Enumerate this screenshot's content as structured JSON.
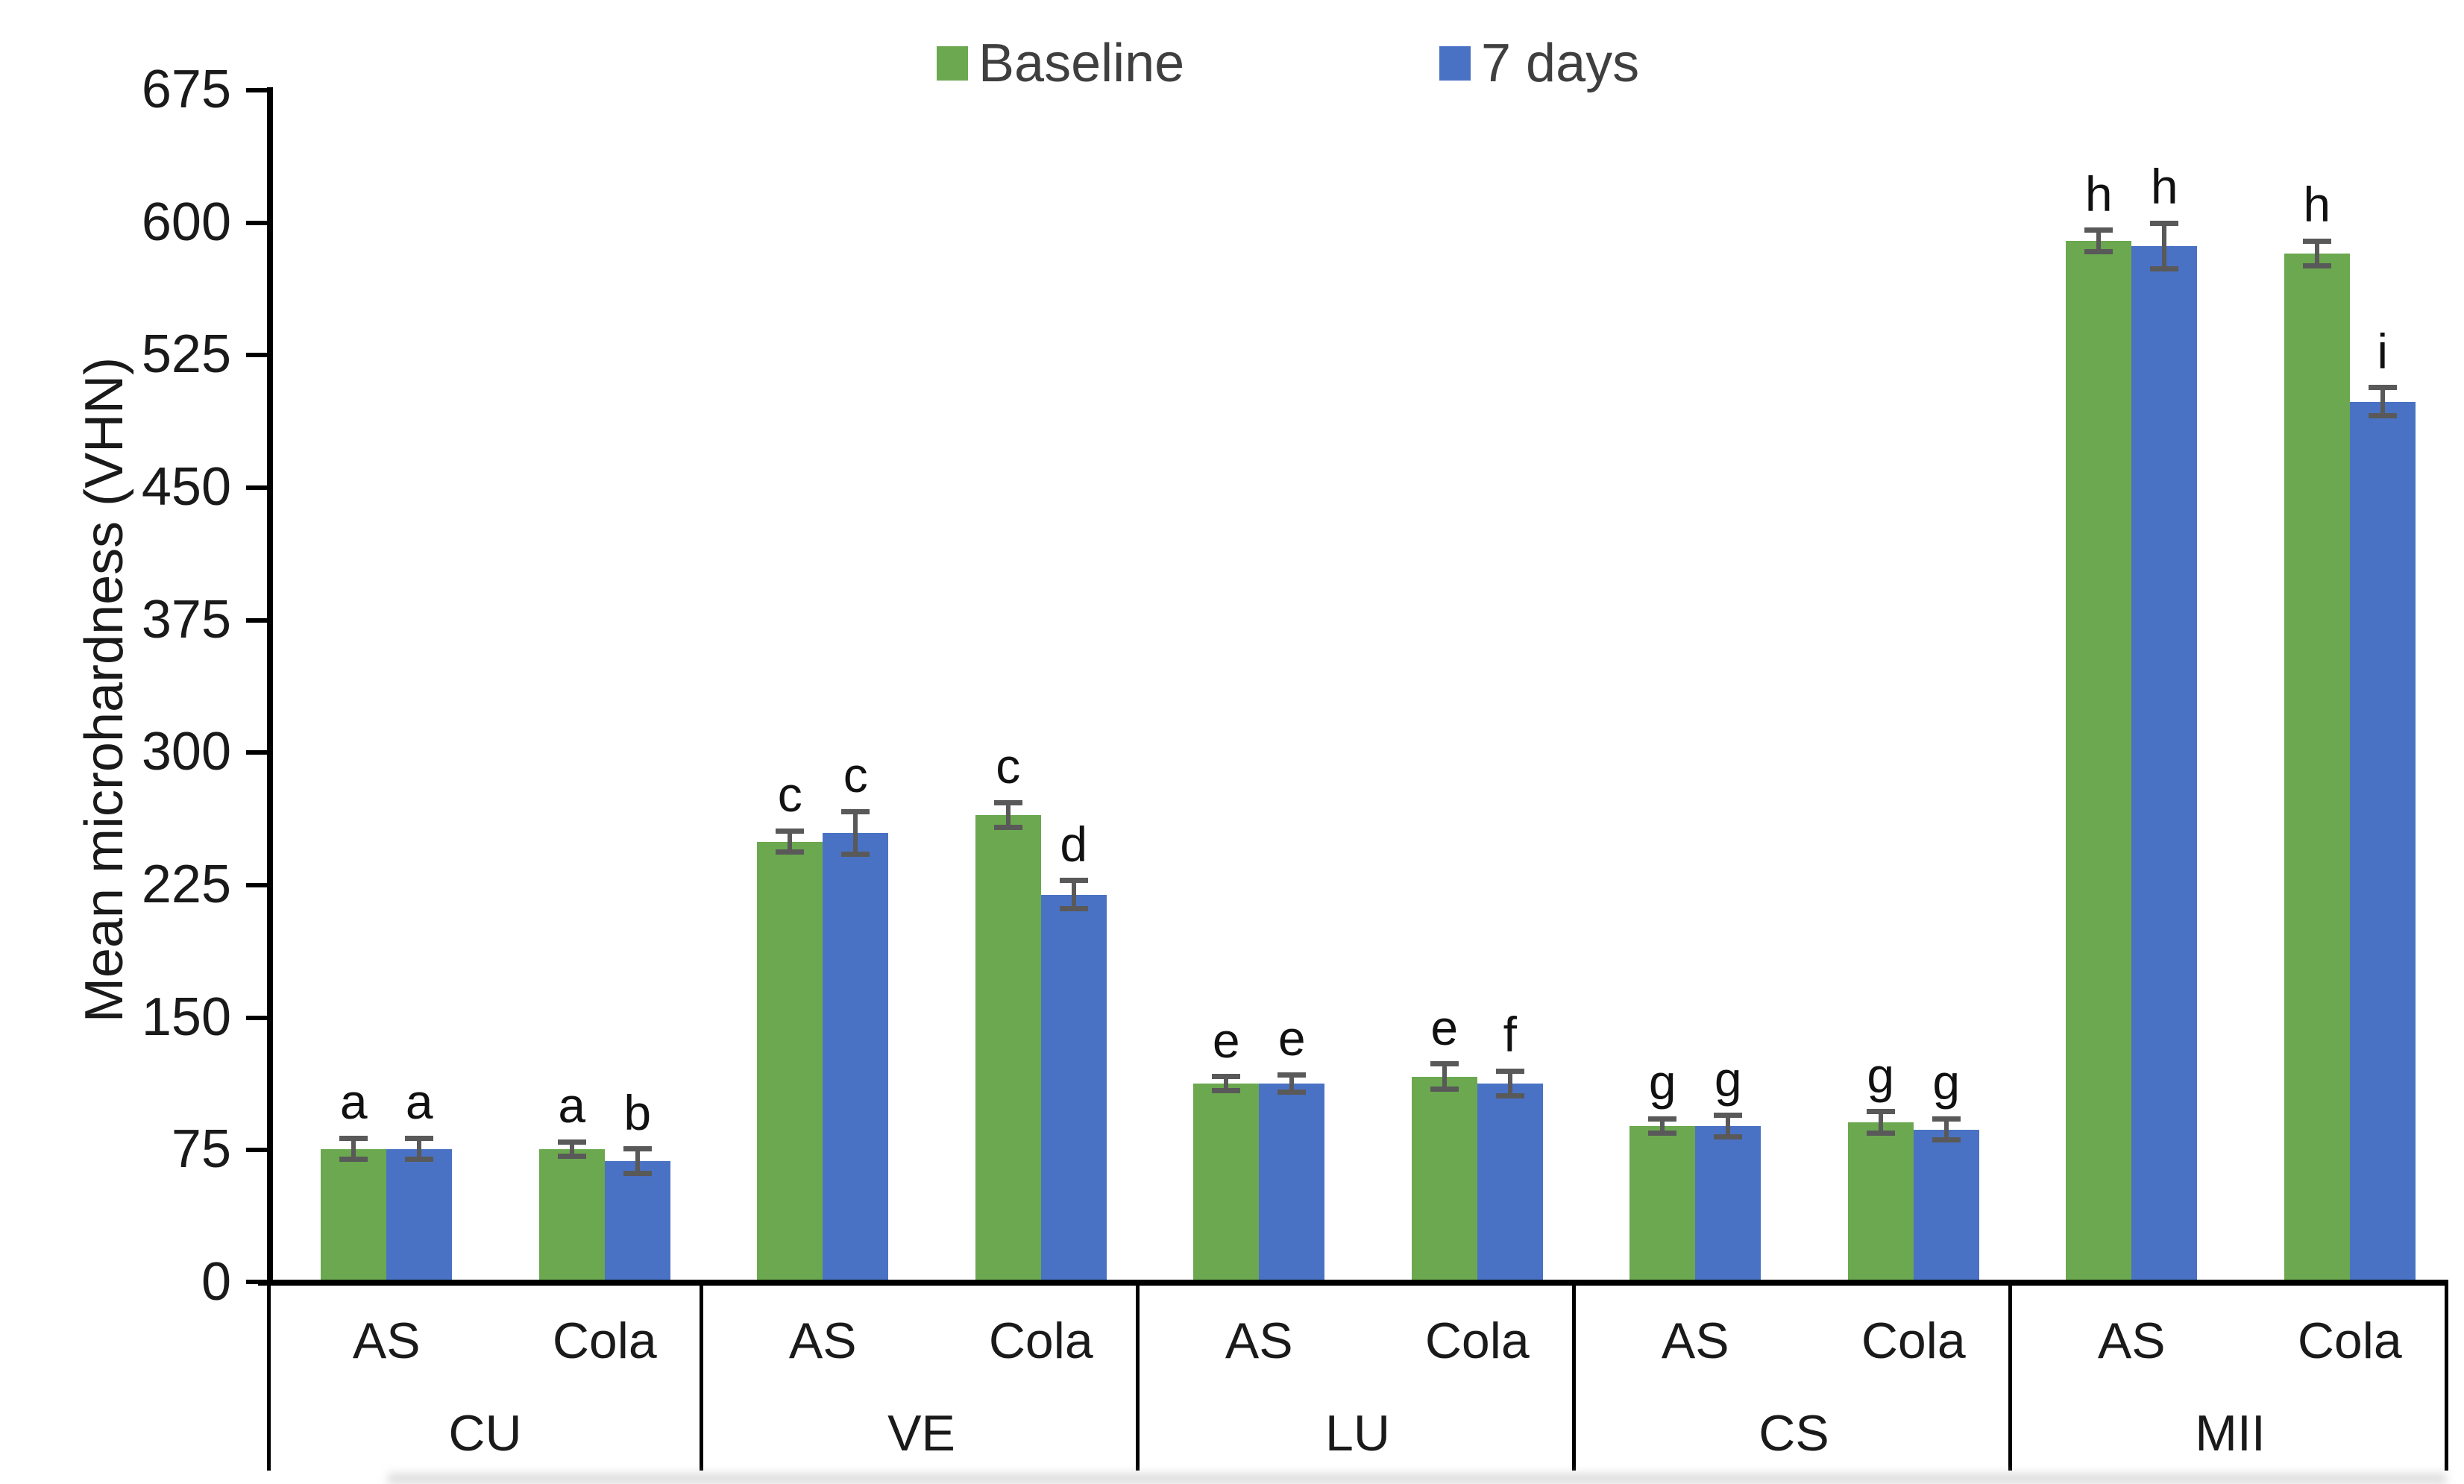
{
  "legend": {
    "items": [
      {
        "label": "Baseline",
        "color": "#6BA84F"
      },
      {
        "label": "7 days",
        "color": "#4A72C4"
      }
    ]
  },
  "chart_data": {
    "type": "bar",
    "title": "",
    "xlabel": "",
    "ylabel": "Mean microhardness (VHN)",
    "ylim": [
      0,
      675
    ],
    "ytick_step": 75,
    "yticks": [
      675,
      600,
      525,
      450,
      375,
      300,
      225,
      150,
      75,
      0
    ],
    "grid": false,
    "legend_position": "top-center",
    "error_bar_color": "#595959",
    "groups": [
      "CU",
      "VE",
      "LU",
      "CS",
      "MII"
    ],
    "subgroups": [
      "AS",
      "Cola"
    ],
    "series_names": [
      "Baseline",
      "7 days"
    ],
    "series_colors": [
      "#6BA84F",
      "#4A72C4"
    ],
    "bars": [
      {
        "group": "CU",
        "sub": "AS",
        "series": "Baseline",
        "value": 74,
        "error": 6,
        "letter": "a"
      },
      {
        "group": "CU",
        "sub": "AS",
        "series": "7 days",
        "value": 74,
        "error": 6,
        "letter": "a"
      },
      {
        "group": "CU",
        "sub": "Cola",
        "series": "Baseline",
        "value": 74,
        "error": 4,
        "letter": "a"
      },
      {
        "group": "CU",
        "sub": "Cola",
        "series": "7 days",
        "value": 67,
        "error": 7,
        "letter": "b"
      },
      {
        "group": "VE",
        "sub": "AS",
        "series": "Baseline",
        "value": 248,
        "error": 6,
        "letter": "c"
      },
      {
        "group": "VE",
        "sub": "AS",
        "series": "7 days",
        "value": 253,
        "error": 12,
        "letter": "c"
      },
      {
        "group": "VE",
        "sub": "Cola",
        "series": "Baseline",
        "value": 263,
        "error": 7,
        "letter": "c"
      },
      {
        "group": "VE",
        "sub": "Cola",
        "series": "7 days",
        "value": 218,
        "error": 8,
        "letter": "d"
      },
      {
        "group": "LU",
        "sub": "AS",
        "series": "Baseline",
        "value": 111,
        "error": 4,
        "letter": "e"
      },
      {
        "group": "LU",
        "sub": "AS",
        "series": "7 days",
        "value": 111,
        "error": 5,
        "letter": "e"
      },
      {
        "group": "LU",
        "sub": "Cola",
        "series": "Baseline",
        "value": 115,
        "error": 7,
        "letter": "e"
      },
      {
        "group": "LU",
        "sub": "Cola",
        "series": "7 days",
        "value": 111,
        "error": 7,
        "letter": "f"
      },
      {
        "group": "CS",
        "sub": "AS",
        "series": "Baseline",
        "value": 87,
        "error": 4,
        "letter": "g"
      },
      {
        "group": "CS",
        "sub": "AS",
        "series": "7 days",
        "value": 87,
        "error": 6,
        "letter": "g"
      },
      {
        "group": "CS",
        "sub": "Cola",
        "series": "Baseline",
        "value": 89,
        "error": 6,
        "letter": "g"
      },
      {
        "group": "CS",
        "sub": "Cola",
        "series": "7 days",
        "value": 85,
        "error": 6,
        "letter": "g"
      },
      {
        "group": "MII",
        "sub": "AS",
        "series": "Baseline",
        "value": 588,
        "error": 6,
        "letter": "h"
      },
      {
        "group": "MII",
        "sub": "AS",
        "series": "7 days",
        "value": 585,
        "error": 13,
        "letter": "h"
      },
      {
        "group": "MII",
        "sub": "Cola",
        "series": "Baseline",
        "value": 581,
        "error": 7,
        "letter": "h"
      },
      {
        "group": "MII",
        "sub": "Cola",
        "series": "7 days",
        "value": 497,
        "error": 8,
        "letter": "i"
      }
    ]
  }
}
